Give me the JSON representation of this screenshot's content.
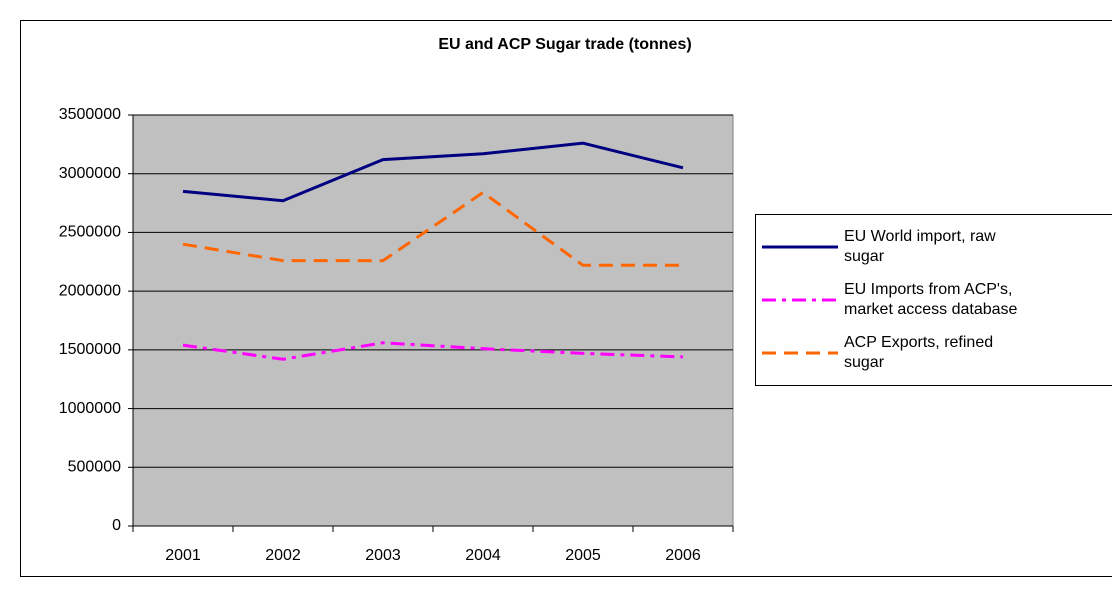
{
  "chart_data": {
    "type": "line",
    "title": "EU and ACP Sugar trade (tonnes)",
    "categories": [
      "2001",
      "2002",
      "2003",
      "2004",
      "2005",
      "2006"
    ],
    "series": [
      {
        "name": "EU World import, raw  sugar",
        "color": "#000080",
        "dash": "solid",
        "values": [
          2850000,
          2770000,
          3120000,
          3170000,
          3260000,
          3050000
        ]
      },
      {
        "name": "EU Imports from ACP's, market access database",
        "color": "#ff00ff",
        "dash": "dashdot",
        "values": [
          1540000,
          1420000,
          1560000,
          1510000,
          1470000,
          1440000
        ]
      },
      {
        "name": "ACP Exports, refined sugar",
        "color": "#ff6600",
        "dash": "dash",
        "values": [
          2400000,
          2260000,
          2260000,
          2840000,
          2220000,
          2220000
        ]
      }
    ],
    "ylim": [
      0,
      3500000
    ],
    "yticks": [
      0,
      500000,
      1000000,
      1500000,
      2000000,
      2500000,
      3000000,
      3500000
    ],
    "grid": true
  }
}
